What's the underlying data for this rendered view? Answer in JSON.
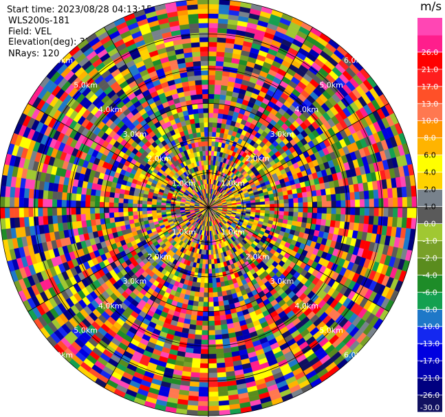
{
  "info": {
    "start_time": "Start time: 2023/08/28 04:13:15",
    "instrument": "WLS200s-181",
    "field": "Field: VEL",
    "elevation": "Elevation(deg): 35.30",
    "nrays": "NRays: 120"
  },
  "chart_data": {
    "type": "heatmap",
    "projection": "polar",
    "field": "VEL",
    "nrays": 120,
    "max_range_km": 6,
    "range_rings_km": [
      1,
      2,
      3,
      4,
      5,
      6
    ],
    "ring_labels": [
      "1.0km",
      "2.0km",
      "3.0km",
      "4.0km",
      "5.0km",
      "6.0km"
    ],
    "colorbar": {
      "unit": "m/s",
      "bounds": [
        -30,
        -26,
        -21,
        -17,
        -13,
        -10,
        -8,
        -6,
        -4,
        -2,
        -1,
        0,
        1,
        2,
        4,
        6,
        8,
        10,
        13,
        17,
        21,
        26,
        30
      ],
      "tick_labels": [
        "-30.0",
        "-26.0",
        "-21.0",
        "-17.0",
        "-13.0",
        "-10.0",
        "-8.0",
        "-6.0",
        "-4.0",
        "-2.0",
        "-1.0",
        "0.0",
        "1.0",
        "2.0",
        "4.0",
        "6.0",
        "8.0",
        "10.0",
        "13.0",
        "17.0",
        "21.0",
        "26.0"
      ],
      "colors": [
        "#101060",
        "#000080",
        "#0000b0",
        "#0000e0",
        "#1428f0",
        "#1e78c8",
        "#14a050",
        "#1e8c28",
        "#5a8c1e",
        "#78a028",
        "#a0c832",
        "#5a5a5a",
        "#78828c",
        "#ffd200",
        "#ffff00",
        "#ffb400",
        "#ff9600",
        "#ff7850",
        "#ff5028",
        "#ff1e1e",
        "#ff0000",
        "#ff1e8c",
        "#ff46b4"
      ]
    }
  }
}
